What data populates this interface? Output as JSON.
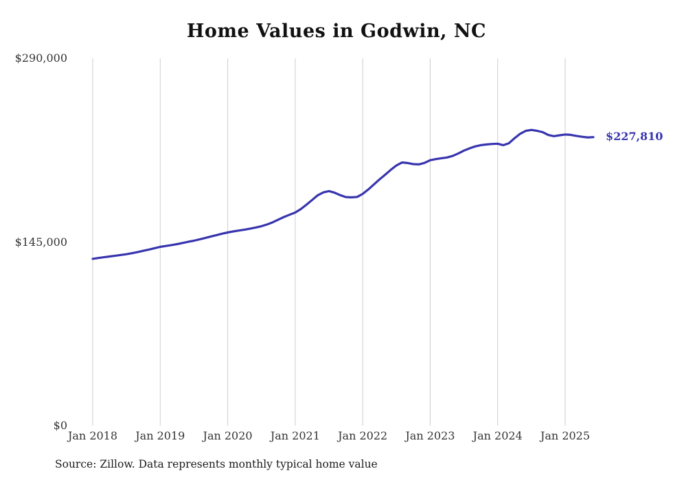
{
  "title": "Home Values in Godwin, NC",
  "source_note": "Source: Zillow. Data represents monthly typical home value",
  "colors": {
    "line": "#3734ae",
    "grid": "#cccccc",
    "axis_text": "#333333",
    "title_text": "#111111",
    "end_label": "#3734ae"
  },
  "chart_data": {
    "type": "line",
    "title": "Home Values in Godwin, NC",
    "xlabel": "",
    "ylabel": "",
    "ylim": [
      0,
      290000
    ],
    "y_ticks": [
      0,
      145000,
      290000
    ],
    "y_tick_labels": [
      "$0",
      "$145,000",
      "$290,000"
    ],
    "x_tick_labels": [
      "Jan 2018",
      "Jan 2019",
      "Jan 2020",
      "Jan 2021",
      "Jan 2022",
      "Jan 2023",
      "Jan 2024",
      "Jan 2025"
    ],
    "x_start": "2018-01",
    "x_end": "2025-06",
    "grid": "vertical-only",
    "legend": "none",
    "last_value": 227810,
    "last_value_label": "$227,810",
    "series": [
      {
        "name": "Typical home value",
        "values": [
          131800,
          132400,
          133000,
          133600,
          134200,
          134800,
          135400,
          136200,
          137100,
          138100,
          139100,
          140200,
          141200,
          141900,
          142600,
          143400,
          144300,
          145200,
          146100,
          147100,
          148200,
          149400,
          150500,
          151600,
          152600,
          153400,
          154100,
          154800,
          155600,
          156500,
          157500,
          158900,
          160600,
          162700,
          164800,
          166600,
          168300,
          171000,
          174500,
          178200,
          181900,
          184200,
          185200,
          184000,
          182000,
          180500,
          180300,
          180600,
          183000,
          186500,
          190500,
          194500,
          198200,
          202000,
          205500,
          207800,
          207400,
          206500,
          206300,
          207500,
          209600,
          210500,
          211200,
          211800,
          213000,
          215000,
          217200,
          219000,
          220500,
          221500,
          222000,
          222400,
          222600,
          221500,
          223000,
          227000,
          230500,
          232800,
          233500,
          232800,
          231800,
          229500,
          228600,
          229300,
          229900,
          229600,
          228800,
          228100,
          227600,
          227810
        ]
      }
    ]
  }
}
